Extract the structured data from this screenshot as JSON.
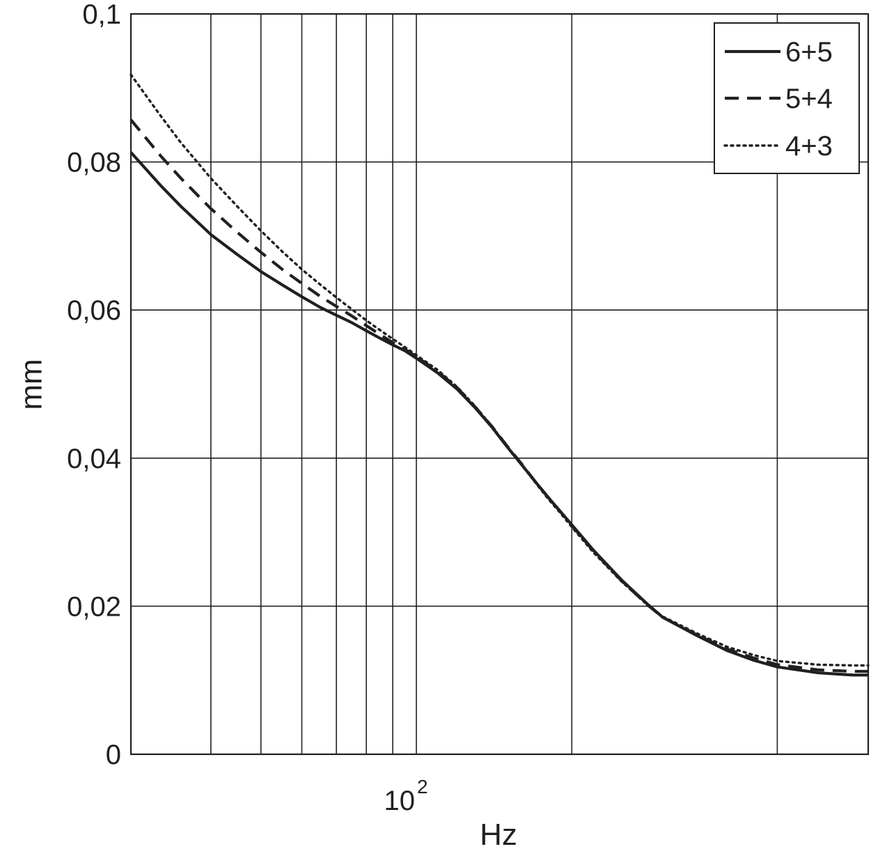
{
  "chart_data": {
    "type": "line",
    "xlabel": "Hz",
    "ylabel": "mm",
    "xscale": "log",
    "xlim": [
      28,
      750
    ],
    "ylim": [
      0,
      0.1
    ],
    "yticks": [
      {
        "value": 0,
        "label": "0"
      },
      {
        "value": 0.02,
        "label": "0,02"
      },
      {
        "value": 0.04,
        "label": "0,04"
      },
      {
        "value": 0.06,
        "label": "0,06"
      },
      {
        "value": 0.08,
        "label": "0,08"
      },
      {
        "value": 0.1,
        "label": "0,1"
      }
    ],
    "xticks": [
      {
        "value": 100,
        "base": "10",
        "exponent": "2"
      }
    ],
    "xgrid": [
      40,
      50,
      60,
      70,
      80,
      90,
      100,
      200,
      500
    ],
    "grid": true,
    "legend_position": "top-right",
    "series": [
      {
        "name": "6+5",
        "style": "solid",
        "color": "#231f20",
        "points": [
          [
            28,
            0.0813
          ],
          [
            32,
            0.0768
          ],
          [
            35,
            0.074
          ],
          [
            40,
            0.0702
          ],
          [
            45,
            0.0675
          ],
          [
            50,
            0.0652
          ],
          [
            55,
            0.0634
          ],
          [
            60,
            0.0618
          ],
          [
            65,
            0.0604
          ],
          [
            70,
            0.0593
          ],
          [
            75,
            0.0583
          ],
          [
            80,
            0.0572
          ],
          [
            85,
            0.0562
          ],
          [
            90,
            0.0553
          ],
          [
            95,
            0.0545
          ],
          [
            100,
            0.0535
          ],
          [
            110,
            0.0515
          ],
          [
            120,
            0.0493
          ],
          [
            130,
            0.0468
          ],
          [
            140,
            0.0442
          ],
          [
            150,
            0.0415
          ],
          [
            160,
            0.0391
          ],
          [
            170,
            0.0368
          ],
          [
            180,
            0.0347
          ],
          [
            190,
            0.0328
          ],
          [
            200,
            0.031
          ],
          [
            220,
            0.0276
          ],
          [
            250,
            0.0235
          ],
          [
            280,
            0.0203
          ],
          [
            300,
            0.0185
          ],
          [
            350,
            0.016
          ],
          [
            400,
            0.014
          ],
          [
            450,
            0.0127
          ],
          [
            500,
            0.0118
          ],
          [
            600,
            0.011
          ],
          [
            700,
            0.0107
          ],
          [
            750,
            0.0107
          ]
        ]
      },
      {
        "name": "5+4",
        "style": "dashed",
        "color": "#231f20",
        "points": [
          [
            28,
            0.0857
          ],
          [
            32,
            0.0808
          ],
          [
            35,
            0.0778
          ],
          [
            40,
            0.0737
          ],
          [
            45,
            0.0705
          ],
          [
            50,
            0.0678
          ],
          [
            55,
            0.0655
          ],
          [
            60,
            0.0636
          ],
          [
            65,
            0.0619
          ],
          [
            70,
            0.0605
          ],
          [
            75,
            0.0592
          ],
          [
            80,
            0.0579
          ],
          [
            85,
            0.0567
          ],
          [
            90,
            0.0556
          ],
          [
            95,
            0.0547
          ],
          [
            100,
            0.0537
          ],
          [
            110,
            0.0517
          ],
          [
            120,
            0.0495
          ],
          [
            130,
            0.0469
          ],
          [
            140,
            0.0443
          ],
          [
            150,
            0.0416
          ],
          [
            160,
            0.0392
          ],
          [
            170,
            0.0368
          ],
          [
            180,
            0.0347
          ],
          [
            190,
            0.0328
          ],
          [
            200,
            0.0309
          ],
          [
            220,
            0.0275
          ],
          [
            250,
            0.0234
          ],
          [
            280,
            0.0202
          ],
          [
            300,
            0.0185
          ],
          [
            350,
            0.0161
          ],
          [
            400,
            0.0142
          ],
          [
            450,
            0.013
          ],
          [
            500,
            0.0121
          ],
          [
            600,
            0.0114
          ],
          [
            700,
            0.0112
          ],
          [
            750,
            0.0112
          ]
        ]
      },
      {
        "name": "4+3",
        "style": "dotted",
        "color": "#231f20",
        "points": [
          [
            28,
            0.0918
          ],
          [
            32,
            0.0862
          ],
          [
            35,
            0.0826
          ],
          [
            40,
            0.0778
          ],
          [
            45,
            0.074
          ],
          [
            50,
            0.0707
          ],
          [
            55,
            0.0679
          ],
          [
            60,
            0.0655
          ],
          [
            65,
            0.0635
          ],
          [
            70,
            0.0617
          ],
          [
            75,
            0.0601
          ],
          [
            80,
            0.0586
          ],
          [
            85,
            0.0573
          ],
          [
            90,
            0.0561
          ],
          [
            95,
            0.055
          ],
          [
            100,
            0.0539
          ],
          [
            110,
            0.0519
          ],
          [
            120,
            0.0496
          ],
          [
            130,
            0.047
          ],
          [
            140,
            0.0443
          ],
          [
            150,
            0.0416
          ],
          [
            160,
            0.0391
          ],
          [
            170,
            0.0367
          ],
          [
            180,
            0.0345
          ],
          [
            190,
            0.0326
          ],
          [
            200,
            0.0307
          ],
          [
            220,
            0.0273
          ],
          [
            250,
            0.0233
          ],
          [
            280,
            0.0202
          ],
          [
            300,
            0.0186
          ],
          [
            350,
            0.0163
          ],
          [
            400,
            0.0145
          ],
          [
            450,
            0.0134
          ],
          [
            500,
            0.0126
          ],
          [
            600,
            0.0121
          ],
          [
            700,
            0.012
          ],
          [
            750,
            0.012
          ]
        ]
      }
    ]
  }
}
